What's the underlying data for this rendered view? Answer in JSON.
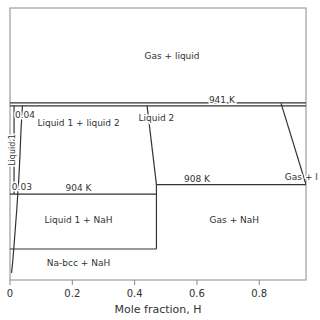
{
  "chart_data": {
    "type": "line",
    "x_label": "Mole fraction, H",
    "color": "#333333",
    "xlim": [
      0,
      0.95
    ],
    "ylim": [
      868,
      982
    ],
    "xticks": [
      0,
      0.2,
      0.4,
      0.6,
      0.8
    ],
    "tick_labels": "x",
    "grid": false,
    "series": [
      {
        "x": [
          0,
          0.95
        ],
        "values": [
          941,
          941
        ]
      },
      {
        "x": [
          0,
          0.95
        ],
        "values": [
          942.2,
          942.2
        ]
      },
      {
        "x": [
          0,
          0.47
        ],
        "values": [
          904,
          904
        ]
      },
      {
        "x": [
          0.47,
          0.95
        ],
        "values": [
          908,
          908
        ]
      },
      {
        "x": [
          0,
          0.47
        ],
        "values": [
          881,
          881
        ]
      },
      {
        "x": [
          0.47,
          0.47
        ],
        "values": [
          881,
          908
        ]
      },
      {
        "x": [
          0.04,
          0.038,
          0.035,
          0.032,
          0.028,
          0.022,
          0.015,
          0.009,
          0.005
        ],
        "values": [
          941,
          937,
          930,
          920,
          910,
          898,
          886,
          876,
          871
        ]
      },
      {
        "x": [
          0.013,
          0.013
        ],
        "values": [
          904,
          941
        ]
      },
      {
        "x": [
          0.44,
          0.47
        ],
        "values": [
          941,
          908
        ]
      },
      {
        "x": [
          0.87,
          0.95
        ],
        "values": [
          942,
          908
        ]
      }
    ],
    "annotations": [
      {
        "text": "Liquid 1",
        "x": 0.008,
        "y": 922.5,
        "orientation": "vertical"
      },
      {
        "text": "Gas + liquid",
        "x": 0.52,
        "y": 962
      },
      {
        "text": "Liquid 1 + liquid 2",
        "x": 0.22,
        "y": 934
      },
      {
        "text": "Liquid 2",
        "x": 0.47,
        "y": 936
      },
      {
        "text": "941 K",
        "x": 0.68,
        "y": 943.5
      },
      {
        "text": "0.04",
        "x": 0.048,
        "y": 937
      },
      {
        "text": "0.03",
        "x": 0.038,
        "y": 907
      },
      {
        "text": "904 K",
        "x": 0.22,
        "y": 906.5
      },
      {
        "text": "908 K",
        "x": 0.6,
        "y": 910.5
      },
      {
        "text": "Gas + l",
        "x": 0.935,
        "y": 911
      },
      {
        "text": "Liquid 1 + NaH",
        "x": 0.22,
        "y": 893
      },
      {
        "text": "Gas + NaH",
        "x": 0.72,
        "y": 893
      },
      {
        "text": "Na-bcc + NaH",
        "x": 0.22,
        "y": 875
      }
    ]
  }
}
